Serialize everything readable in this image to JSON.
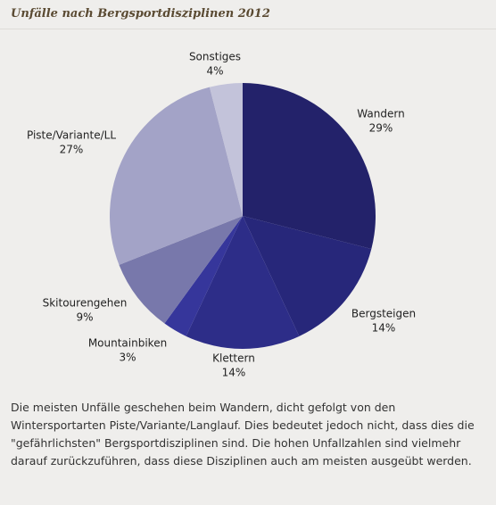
{
  "chart_data": {
    "type": "pie",
    "title": "Unfälle nach Bergsportdisziplinen 2012",
    "categories": [
      "Wandern",
      "Bergsteigen",
      "Klettern",
      "Mountainbiken",
      "Skitourengehen",
      "Piste/Variante/LL",
      "Sonstiges"
    ],
    "values": [
      29,
      14,
      14,
      3,
      9,
      27,
      4
    ],
    "value_labels": [
      "29%",
      "14%",
      "14%",
      "3%",
      "9%",
      "27%",
      "4%"
    ],
    "colors": [
      "#23226a",
      "#27277a",
      "#2d2d88",
      "#36369b",
      "#7878ab",
      "#a3a3c7",
      "#c3c3da"
    ]
  },
  "description": "Die meisten Unfälle geschehen beim Wandern, dicht gefolgt von den Wintersportarten Piste/Variante/Langlauf. Dies bedeutet jedoch nicht, dass dies die \"gefährlichsten\" Bergsportdisziplinen sind. Die hohen Unfallzahlen sind vielmehr darauf zurückzuführen, dass diese Disziplinen auch am meisten ausgeübt werden."
}
